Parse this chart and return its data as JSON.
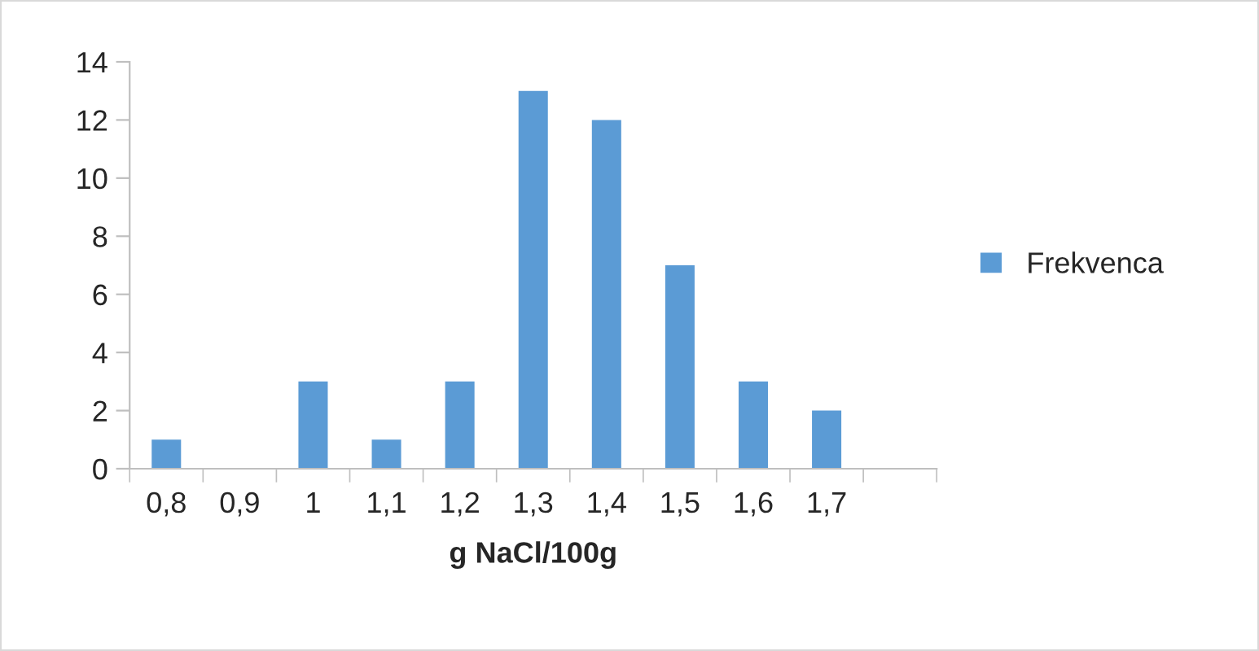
{
  "chart_data": {
    "type": "bar",
    "xlabel": "g NaCl/100g",
    "categories": [
      "0,8",
      "0,9",
      "1",
      "1,1",
      "1,2",
      "1,3",
      "1,4",
      "1,5",
      "1,6",
      "1,7",
      null
    ],
    "series": [
      {
        "name": "Frekvenca",
        "color": "#5b9bd5",
        "values": [
          1,
          0,
          3,
          1,
          3,
          13,
          12,
          7,
          3,
          2,
          0
        ]
      }
    ],
    "ylim": [
      0,
      14
    ],
    "yticks": [
      0,
      2,
      4,
      6,
      8,
      10,
      12,
      14
    ],
    "grid": false,
    "legend": "right"
  }
}
